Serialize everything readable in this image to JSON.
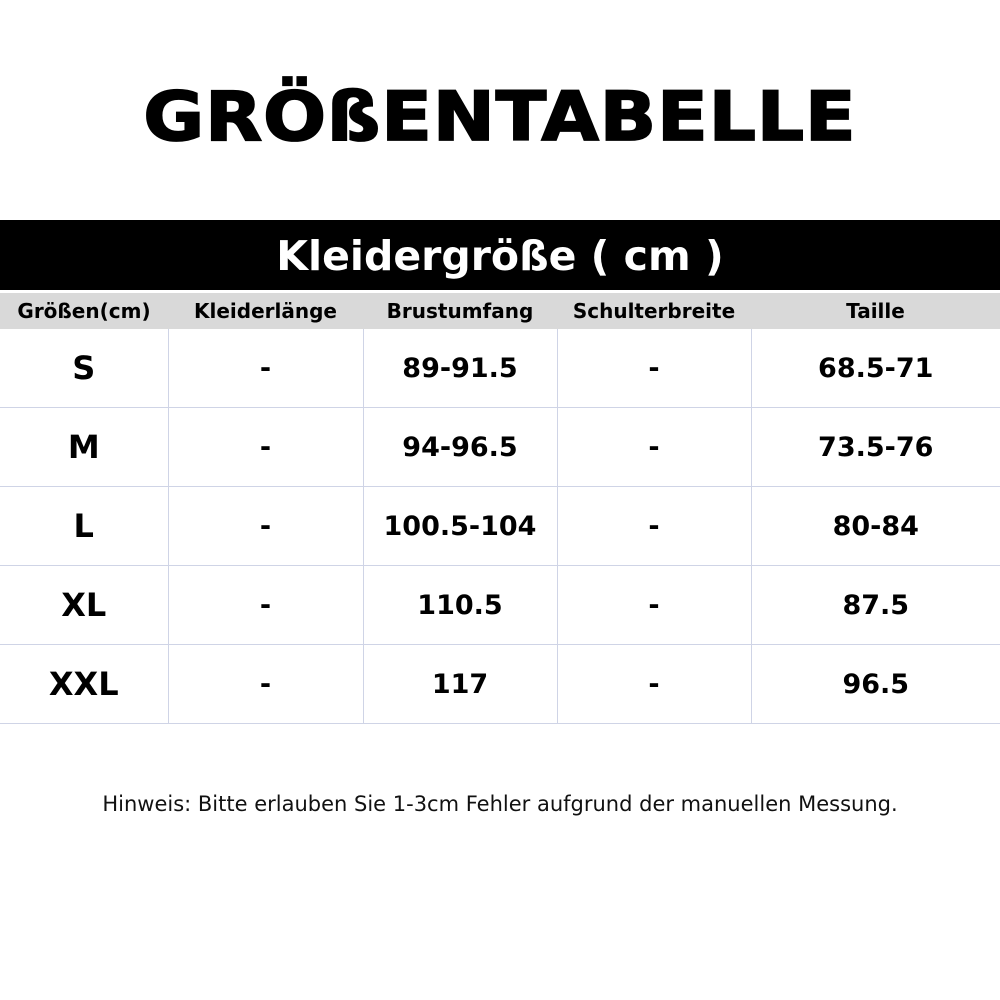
{
  "title": "GRÖßENTABELLE",
  "banner": "Kleidergröße ( cm )",
  "table": {
    "headers": [
      "Größen(cm)",
      "Kleiderlänge",
      "Brustumfang",
      "Schulterbreite",
      "Taille"
    ],
    "rows": [
      [
        "S",
        "-",
        "89-91.5",
        "-",
        "68.5-71"
      ],
      [
        "M",
        "-",
        "94-96.5",
        "-",
        "73.5-76"
      ],
      [
        "L",
        "-",
        "100.5-104",
        "-",
        "80-84"
      ],
      [
        "XL",
        "-",
        "110.5",
        "-",
        "87.5"
      ],
      [
        "XXL",
        "-",
        "117",
        "-",
        "96.5"
      ]
    ]
  },
  "note": "Hinweis: Bitte erlauben Sie 1-3cm Fehler aufgrund der manuellen Messung.",
  "colors": {
    "banner_background": "#000000",
    "header_background": "#d9d9d9",
    "grid_line": "#cfd4e6"
  }
}
